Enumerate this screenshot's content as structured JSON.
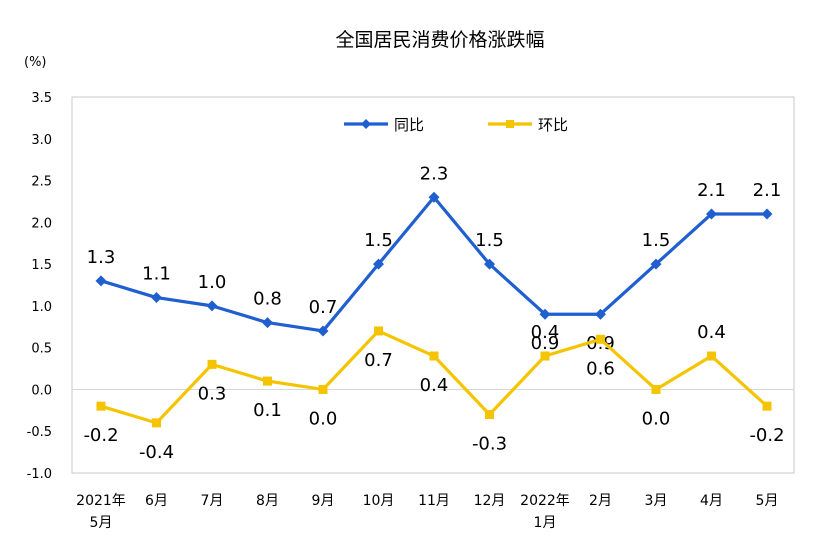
{
  "chart_data": {
    "type": "line",
    "title": "全国居民消费价格涨跌幅",
    "unit_label": "(%)",
    "categories": [
      [
        "2021年",
        "5月"
      ],
      [
        "6月"
      ],
      [
        "7月"
      ],
      [
        "8月"
      ],
      [
        "9月"
      ],
      [
        "10月"
      ],
      [
        "11月"
      ],
      [
        "12月"
      ],
      [
        "2022年",
        "1月"
      ],
      [
        "2月"
      ],
      [
        "3月"
      ],
      [
        "4月"
      ],
      [
        "5月"
      ]
    ],
    "ylim": [
      -1.0,
      3.5
    ],
    "yticks": [
      "3.5",
      "3.0",
      "2.5",
      "2.0",
      "1.5",
      "1.0",
      "0.5",
      "0.0",
      "-0.5",
      "-1.0"
    ],
    "ytick_values": [
      3.5,
      3.0,
      2.5,
      2.0,
      1.5,
      1.0,
      0.5,
      0.0,
      -0.5,
      -1.0
    ],
    "legend_position": "top-center",
    "series": [
      {
        "name": "同比",
        "color": "#1f5fcf",
        "values": [
          1.3,
          1.1,
          1.0,
          0.8,
          0.7,
          1.5,
          2.3,
          1.5,
          0.9,
          0.9,
          1.5,
          2.1,
          2.1
        ],
        "labels": [
          "1.3",
          "1.1",
          "1.0",
          "0.8",
          "0.7",
          "1.5",
          "2.3",
          "1.5",
          "0.9",
          "0.9",
          "1.5",
          "2.1",
          "2.1"
        ]
      },
      {
        "name": "环比",
        "color": "#f5c400",
        "values": [
          -0.2,
          -0.4,
          0.3,
          0.1,
          0.0,
          0.7,
          0.4,
          -0.3,
          0.4,
          0.6,
          0.0,
          0.4,
          -0.2
        ],
        "labels": [
          "-0.2",
          "-0.4",
          "0.3",
          "0.1",
          "0.0",
          "0.7",
          "0.4",
          "-0.3",
          "0.4",
          "0.6",
          "0.0",
          "0.4",
          "-0.2"
        ]
      }
    ]
  }
}
